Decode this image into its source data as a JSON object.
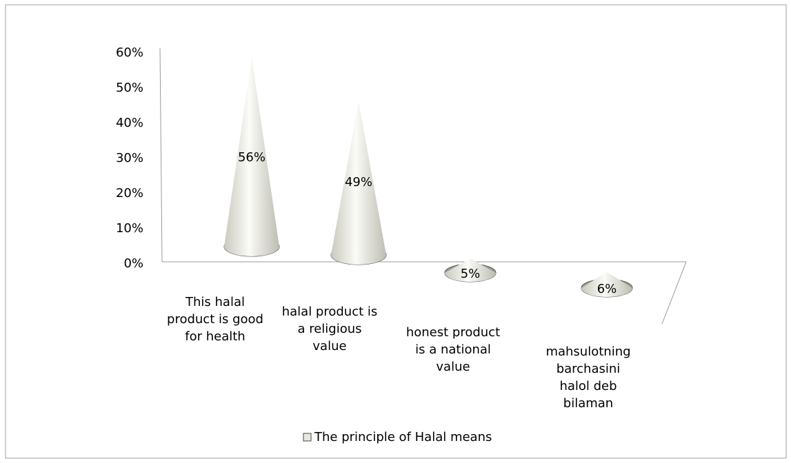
{
  "chart_data": {
    "type": "cone",
    "categories": [
      "This halal product is good for health",
      "halal product is a religious value",
      "honest product is a national value",
      "mahsulotning barchasini halol deb bilaman"
    ],
    "series": [
      {
        "name": "The principle of Halal means",
        "color": "#e8e8e0",
        "values": [
          56,
          49,
          5,
          6
        ],
        "value_labels": [
          "56%",
          "49%",
          "5%",
          "6%"
        ]
      }
    ],
    "ylim": [
      0,
      60
    ],
    "yticks": [
      {
        "value": 0,
        "label": "0%"
      },
      {
        "value": 10,
        "label": "10%"
      },
      {
        "value": 20,
        "label": "20%"
      },
      {
        "value": 30,
        "label": "30%"
      },
      {
        "value": 40,
        "label": "40%"
      },
      {
        "value": 50,
        "label": "50%"
      },
      {
        "value": 60,
        "label": "60%"
      }
    ],
    "legend": "bottom"
  }
}
